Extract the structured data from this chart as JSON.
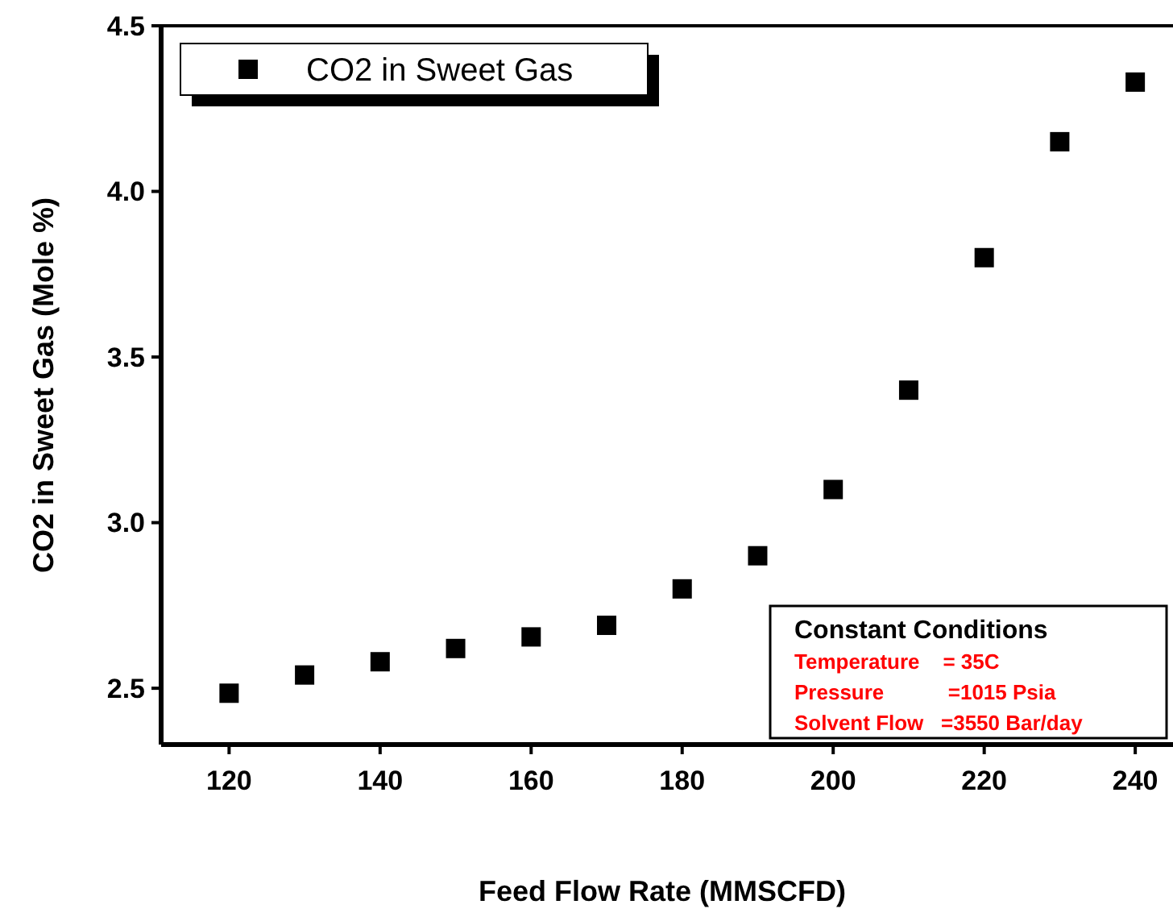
{
  "chart_data": {
    "type": "scatter",
    "xlabel": "Feed Flow Rate (MMSCFD)",
    "ylabel": "CO2 in Sweet Gas (Mole %)",
    "x": [
      120,
      130,
      140,
      150,
      160,
      170,
      180,
      190,
      200,
      210,
      220,
      230,
      240
    ],
    "series": [
      {
        "name": "CO2 in Sweet Gas",
        "color": "#000000",
        "values": [
          2.485,
          2.54,
          2.58,
          2.62,
          2.655,
          2.69,
          2.8,
          2.9,
          3.1,
          3.4,
          3.8,
          4.15,
          4.33
        ]
      }
    ],
    "xlim": [
      111,
      245
    ],
    "ylim": [
      2.33,
      4.5
    ],
    "xticks": [
      120,
      140,
      160,
      180,
      200,
      220,
      240
    ],
    "yticks": [
      2.5,
      {
        "value": 3,
        "label": "3.0"
      },
      3.5,
      {
        "value": 4,
        "label": "4.0"
      },
      4.5
    ],
    "marker": "square",
    "legend": "top left",
    "grid": false,
    "annotations": [
      "Constant Conditions",
      "Temperature    = 35C",
      "Pressure           =1015 Psia",
      "Solvent Flow   =3550 Bar/day"
    ]
  }
}
